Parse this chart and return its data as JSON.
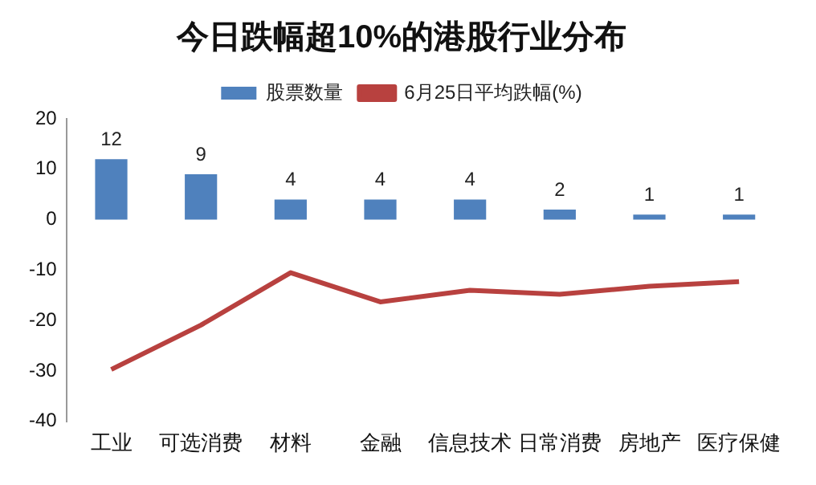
{
  "chart_data": {
    "type": "bar",
    "title": "今日跌幅超10%的港股行业分布",
    "categories": [
      "工业",
      "可选消费",
      "材料",
      "金融",
      "信息技术",
      "日常消费",
      "房地产",
      "医疗保健"
    ],
    "series": [
      {
        "name": "股票数量",
        "color": "#4f81bd",
        "values": [
          12,
          9,
          4,
          4,
          4,
          2,
          1,
          1
        ],
        "data_labels": true
      },
      {
        "name": "6月25日平均跌幅(%)",
        "type": "line",
        "color": "#b8413f",
        "values": [
          -29.7,
          -20.9,
          -10.5,
          -16.3,
          -14.0,
          -14.8,
          -13.2,
          -12.3
        ]
      }
    ],
    "ylim": [
      -40,
      20
    ],
    "yticks": [
      -40,
      -30,
      -20,
      -10,
      0,
      10,
      20
    ],
    "grid": false,
    "legend": "top",
    "marker": "none"
  }
}
